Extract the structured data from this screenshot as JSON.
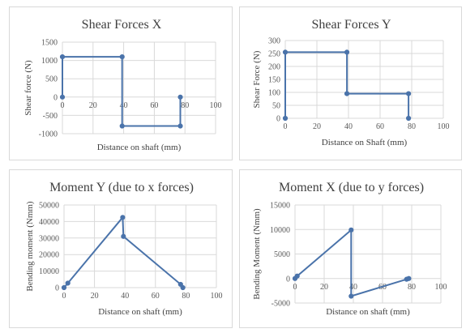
{
  "chart_data": [
    {
      "type": "scatter",
      "title": "Shear Forces X",
      "xlabel": "Distance on shaft (mm)",
      "ylabel": "Shear force (N)",
      "xlim": [
        0,
        100
      ],
      "ylim": [
        -1000,
        1500
      ],
      "xticks": [
        0,
        20,
        40,
        60,
        80,
        100
      ],
      "yticks": [
        -1000,
        -500,
        0,
        500,
        1000,
        1500
      ],
      "grid": true,
      "series": [
        {
          "x": [
            0,
            0,
            39,
            39,
            77,
            77
          ],
          "y": [
            0,
            1100,
            1100,
            -790,
            -790,
            0
          ]
        }
      ]
    },
    {
      "type": "scatter",
      "title": "Shear Forces Y",
      "xlabel": "Distance on Shaft (mm)",
      "ylabel": "Shear Force (N)",
      "xlim": [
        0,
        100
      ],
      "ylim": [
        0,
        300
      ],
      "xticks": [
        0,
        20,
        40,
        60,
        80,
        100
      ],
      "yticks": [
        0,
        50,
        100,
        150,
        200,
        250,
        300
      ],
      "grid": true,
      "series": [
        {
          "x": [
            0,
            0,
            39,
            39,
            78,
            78
          ],
          "y": [
            0,
            255,
            255,
            95,
            95,
            0
          ]
        }
      ]
    },
    {
      "type": "scatter",
      "title": "Moment Y (due to x forces)",
      "xlabel": "Distance on shaft (mm)",
      "ylabel": "Bending moment (Nmm)",
      "xlim": [
        0,
        100
      ],
      "ylim": [
        0,
        50000
      ],
      "xticks": [
        0,
        20,
        40,
        60,
        80,
        100
      ],
      "yticks": [
        0,
        10000,
        20000,
        30000,
        40000,
        50000
      ],
      "grid": true,
      "series": [
        {
          "x": [
            0,
            2.5,
            38.5,
            39,
            76.5,
            78
          ],
          "y": [
            0,
            2700,
            42500,
            31000,
            2000,
            0
          ]
        }
      ]
    },
    {
      "type": "scatter",
      "title": "Moment X (due to y forces)",
      "xlabel": "Distance on shaft (mm)",
      "ylabel": "Bending Moment (Nmm)",
      "xlim": [
        0,
        100
      ],
      "ylim": [
        -5000,
        15000
      ],
      "xticks": [
        0,
        20,
        40,
        60,
        80,
        100
      ],
      "yticks": [
        -5000,
        0,
        5000,
        10000,
        15000
      ],
      "grid": true,
      "series": [
        {
          "x": [
            0,
            1.5,
            38.5,
            38.5,
            76.5,
            78
          ],
          "y": [
            0,
            500,
            9900,
            -3600,
            -150,
            0
          ]
        }
      ]
    }
  ],
  "style": {
    "line_color": "#4a73aa",
    "grid_color": "#d9d9d9",
    "text_color": "#404040",
    "tick_color": "#595959"
  }
}
